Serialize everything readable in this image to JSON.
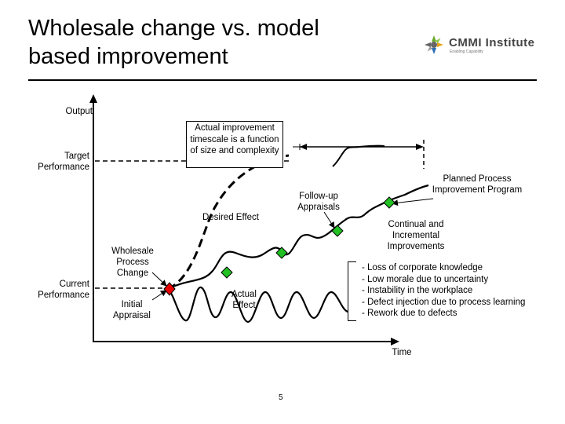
{
  "title": "Wholesale change vs. model based improvement",
  "logo": {
    "name": "CMMI Institute",
    "tagline": "Enabling Capability"
  },
  "axes": {
    "y_label": "Output",
    "x_label": "Time"
  },
  "levels": {
    "target": "Target Performance",
    "current": "Current Performance"
  },
  "callouts": {
    "timescale": "Actual improvement timescale is a function of size and complexity",
    "planned": "Planned Process Improvement Program",
    "followup": "Follow-up Appraisals",
    "desired": "Desired Effect",
    "wholesale": "Wholesale Process Change",
    "initial": "Initial Appraisal",
    "actual": "Actual Effect",
    "continual": "Continual and Incremental Improvements"
  },
  "issues": [
    "- Loss of corporate knowledge",
    "- Low morale due to uncertainty",
    "- Instability in the workplace",
    "- Defect injection due to process learning",
    "- Rework due to defects"
  ],
  "colors": {
    "red_marker": "#e60000",
    "green_marker": "#22c022",
    "logo_gray": "#444444"
  },
  "page_number": "5"
}
